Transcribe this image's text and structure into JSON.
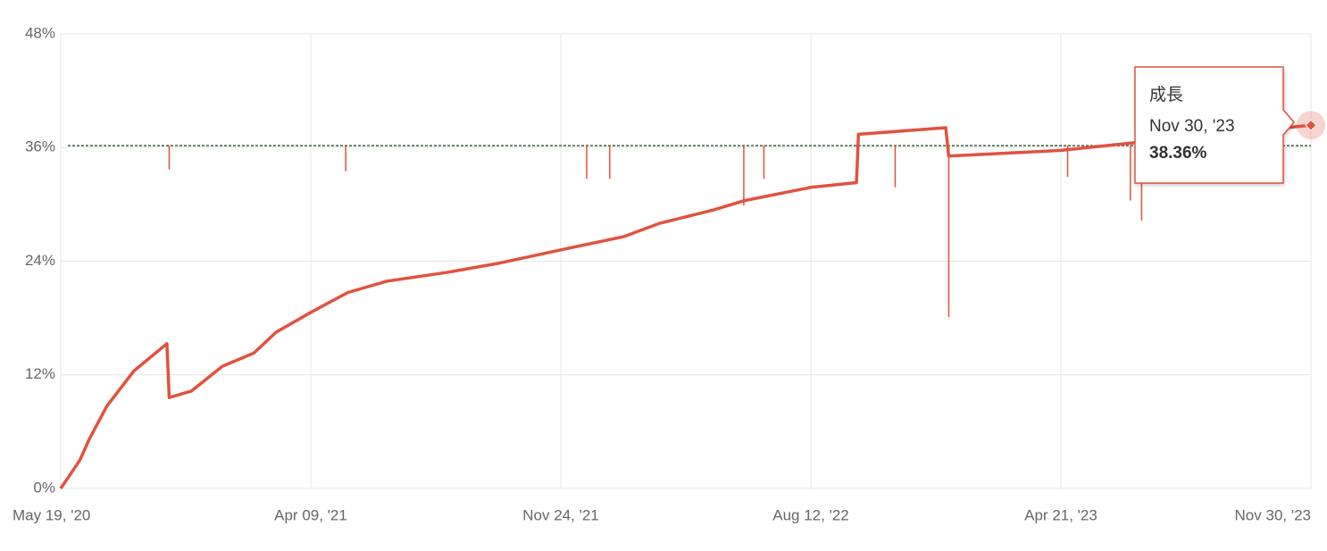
{
  "chart_data": {
    "type": "line",
    "xlim": [
      "2020-05-19",
      "2023-11-30"
    ],
    "xticks": [
      {
        "value": "2020-05-19",
        "label": "May 19, '20"
      },
      {
        "value": "2021-04-09",
        "label": "Apr 09, '21"
      },
      {
        "value": "2021-11-24",
        "label": "Nov 24, '21"
      },
      {
        "value": "2022-08-12",
        "label": "Aug 12, '22"
      },
      {
        "value": "2023-04-21",
        "label": "Apr 21, '23"
      },
      {
        "value": "2023-11-30",
        "label": "Nov 30, '23"
      }
    ],
    "ylim": [
      0,
      48
    ],
    "yticks": [
      {
        "value": 0,
        "label": "0%"
      },
      {
        "value": 12,
        "label": "12%"
      },
      {
        "value": 24,
        "label": "24%"
      },
      {
        "value": 36,
        "label": "36%"
      },
      {
        "value": 48,
        "label": "48%"
      }
    ],
    "grid": true,
    "series": [
      {
        "name": "成長",
        "color": "#e0533f",
        "x": [
          "2020-05-19",
          "2020-06-13",
          "2020-06-25",
          "2020-07-18",
          "2020-08-22",
          "2020-10-04",
          "2020-10-07",
          "2020-11-05",
          "2020-12-15",
          "2021-01-25",
          "2021-02-23",
          "2021-04-09",
          "2021-05-13",
          "2021-06-18",
          "2021-08-11",
          "2021-09-29",
          "2021-11-24",
          "2022-01-29",
          "2022-03-07",
          "2022-05-02",
          "2022-06-04",
          "2022-08-12",
          "2022-09-27",
          "2022-09-29",
          "2022-12-26",
          "2022-12-29",
          "2023-04-21",
          "2023-06-25",
          "2023-11-30"
        ],
        "values": [
          0,
          3.0,
          5.2,
          8.7,
          12.4,
          15.3,
          9.6,
          10.3,
          12.9,
          14.3,
          16.5,
          18.6,
          20.7,
          21.9,
          22.8,
          23.8,
          25.2,
          26.6,
          28.0,
          29.4,
          30.4,
          31.8,
          32.3,
          37.4,
          38.1,
          35.1,
          35.7,
          36.5,
          38.36
        ],
        "value_labels": [
          null,
          null,
          null,
          null,
          null,
          null,
          null,
          null,
          null,
          null,
          null,
          null,
          null,
          null,
          null,
          null,
          null,
          null,
          null,
          null,
          null,
          null,
          null,
          null,
          null,
          null,
          null,
          null,
          "38.36%"
        ]
      }
    ],
    "bars": {
      "color": "#e0533f",
      "base": 36.2,
      "x": [
        "2020-10-07",
        "2021-05-11",
        "2021-12-21",
        "2022-01-14",
        "2022-06-03",
        "2022-06-24",
        "2022-11-05",
        "2022-12-29",
        "2023-04-27",
        "2023-06-22",
        "2023-07-02"
      ],
      "values": [
        33.7,
        33.5,
        32.7,
        32.7,
        29.9,
        32.7,
        31.8,
        18.1,
        32.9,
        30.4,
        28.3
      ]
    }
  }
}
